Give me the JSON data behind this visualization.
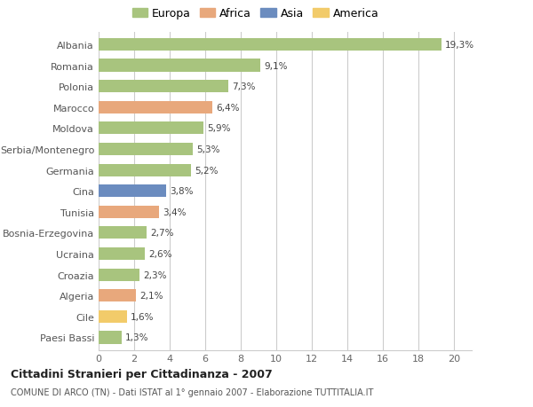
{
  "categories": [
    "Albania",
    "Romania",
    "Polonia",
    "Marocco",
    "Moldova",
    "Serbia/Montenegro",
    "Germania",
    "Cina",
    "Tunisia",
    "Bosnia-Erzegovina",
    "Ucraina",
    "Croazia",
    "Algeria",
    "Cile",
    "Paesi Bassi"
  ],
  "values": [
    19.3,
    9.1,
    7.3,
    6.4,
    5.9,
    5.3,
    5.2,
    3.8,
    3.4,
    2.7,
    2.6,
    2.3,
    2.1,
    1.6,
    1.3
  ],
  "labels": [
    "19,3%",
    "9,1%",
    "7,3%",
    "6,4%",
    "5,9%",
    "5,3%",
    "5,2%",
    "3,8%",
    "3,4%",
    "2,7%",
    "2,6%",
    "2,3%",
    "2,1%",
    "1,6%",
    "1,3%"
  ],
  "regions": [
    "Europa",
    "Europa",
    "Europa",
    "Africa",
    "Europa",
    "Europa",
    "Europa",
    "Asia",
    "Africa",
    "Europa",
    "Europa",
    "Europa",
    "Africa",
    "America",
    "Europa"
  ],
  "colors": {
    "Europa": "#a8c47e",
    "Africa": "#e8a87c",
    "Asia": "#6b8cbf",
    "America": "#f2cb6a"
  },
  "xlim": [
    0,
    21
  ],
  "xticks": [
    0,
    2,
    4,
    6,
    8,
    10,
    12,
    14,
    16,
    18,
    20
  ],
  "title": "Cittadini Stranieri per Cittadinanza - 2007",
  "subtitle": "COMUNE DI ARCO (TN) - Dati ISTAT al 1° gennaio 2007 - Elaborazione TUTTITALIA.IT",
  "background_color": "#ffffff",
  "grid_color": "#cccccc",
  "bar_height": 0.6
}
